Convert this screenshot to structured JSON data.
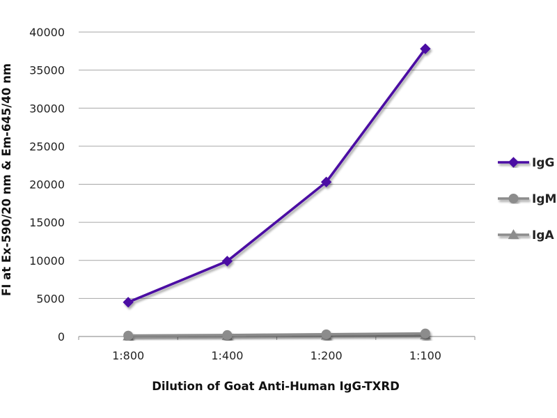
{
  "chart_data": {
    "type": "line",
    "title": "",
    "xlabel": "Dilution of Goat Anti-Human IgG-TXRD",
    "ylabel": "FI at Ex-590/20 nm & Em-645/40 nm",
    "categories": [
      "1:800",
      "1:400",
      "1:200",
      "1:100"
    ],
    "ylim": [
      0,
      40000
    ],
    "yticks": [
      0,
      5000,
      10000,
      15000,
      20000,
      25000,
      30000,
      35000,
      40000
    ],
    "grid": true,
    "legend_position": "right",
    "series": [
      {
        "name": "IgG",
        "values": [
          4500,
          9900,
          20300,
          37800
        ],
        "color": "#4B0FA3",
        "marker": "diamond"
      },
      {
        "name": "IgM",
        "values": [
          120,
          190,
          290,
          400
        ],
        "color": "#8C8C8C",
        "marker": "circle"
      },
      {
        "name": "IgA",
        "values": [
          60,
          100,
          140,
          180
        ],
        "color": "#8C8C8C",
        "marker": "triangle"
      }
    ]
  }
}
